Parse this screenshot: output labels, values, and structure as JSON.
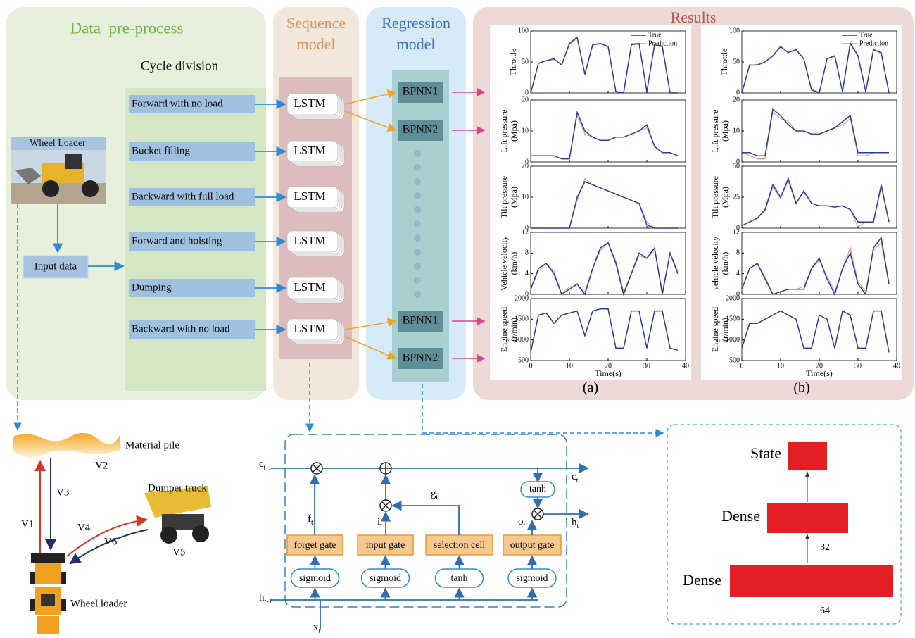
{
  "data_preprocess": {
    "title": "Data  pre-process",
    "cycle_title": "Cycle division",
    "loader_label": "Wheel Loader",
    "input": "Input data",
    "phases": [
      "Forward with no load",
      "Bucket filling",
      "Backward with full load",
      "Forward and hoisting",
      "Dumping",
      "Backward with no load"
    ]
  },
  "sequence_model": {
    "title": [
      "Sequence",
      "model"
    ],
    "cells": [
      "LSTM",
      "LSTM",
      "LSTM",
      "LSTM",
      "LSTM",
      "LSTM"
    ]
  },
  "regression_model": {
    "title": [
      "Regression",
      "model"
    ],
    "top": [
      "BPNN1",
      "BPNN2"
    ],
    "bottom": [
      "BPNN1",
      "BPNN2"
    ]
  },
  "results": {
    "title": "Results",
    "xlabel": "Time(s)",
    "xlim": [
      0,
      40
    ],
    "xticks": [
      0,
      10,
      20,
      30,
      40
    ],
    "panels": [
      {
        "label": "(a)",
        "x": [
          0,
          2,
          4,
          6,
          8,
          10,
          12,
          14,
          16,
          18,
          20,
          22,
          24,
          26,
          28,
          30,
          32,
          34,
          36,
          38
        ],
        "charts": [
          {
            "type": "line",
            "ylabel": [
              "Throttle"
            ],
            "ylim": [
              0,
              100
            ],
            "yticks": [
              0,
              50,
              100
            ],
            "series": [
              {
                "name": "True",
                "color": "#2a3c99",
                "values": [
                  0,
                  48,
                  52,
                  55,
                  45,
                  80,
                  90,
                  30,
                  78,
                  80,
                  75,
                  2,
                  0,
                  78,
                  80,
                  2,
                  78,
                  75,
                  0,
                  0
                ]
              },
              {
                "name": "Prediction",
                "color": "#f08a8a",
                "values": [
                  0,
                  47,
                  52,
                  54,
                  46,
                  78,
                  88,
                  32,
                  77,
                  79,
                  74,
                  3,
                  1,
                  77,
                  79,
                  3,
                  77,
                  74,
                  1,
                  0
                ]
              }
            ]
          },
          {
            "type": "line",
            "ylabel": [
              "Lift pressure",
              "(Mpa)"
            ],
            "ylim": [
              0,
              20
            ],
            "yticks": [
              0,
              10,
              20
            ],
            "series": [
              {
                "color": "#2a3c99",
                "values": [
                  2,
                  2,
                  2,
                  2,
                  1,
                  1,
                  16,
                  10,
                  8,
                  7,
                  7,
                  8,
                  8,
                  9,
                  10,
                  12,
                  5,
                  3,
                  3,
                  2
                ]
              },
              {
                "color": "#f08a8a",
                "values": [
                  2,
                  2,
                  2,
                  2,
                  1,
                  1,
                  15,
                  9,
                  8,
                  7,
                  7,
                  8,
                  8,
                  9,
                  10,
                  11,
                  5,
                  3,
                  3,
                  2
                ]
              }
            ]
          },
          {
            "type": "line",
            "ylabel": [
              "Tilt pressure",
              "(Mpa)"
            ],
            "ylim": [
              0,
              20
            ],
            "yticks": [
              0,
              10,
              20
            ],
            "series": [
              {
                "color": "#2a3c99",
                "values": [
                  0,
                  0,
                  0,
                  0,
                  0,
                  0,
                  10,
                  15,
                  14,
                  13,
                  12,
                  11,
                  10,
                  9,
                  8,
                  1,
                  0,
                  0,
                  0,
                  0
                ]
              },
              {
                "color": "#f08a8a",
                "values": [
                  0,
                  0,
                  0,
                  0,
                  0,
                  0,
                  9,
                  16,
                  14,
                  13,
                  12,
                  11,
                  10,
                  9,
                  8,
                  2,
                  0,
                  0,
                  0,
                  0
                ]
              }
            ]
          },
          {
            "type": "line",
            "ylabel": [
              "Vehicle velocity",
              "(km/h)"
            ],
            "ylim": [
              0,
              12
            ],
            "yticks": [
              0,
              4,
              8,
              12
            ],
            "series": [
              {
                "color": "#2a3c99",
                "values": [
                  1,
                  5,
                  6,
                  4,
                  0,
                  1,
                  2,
                  0,
                  5,
                  9,
                  10,
                  6,
                  0,
                  4,
                  8,
                  7,
                  9,
                  0,
                  8,
                  4
                ]
              },
              {
                "color": "#f08a8a",
                "values": [
                  1,
                  4.5,
                  6,
                  4.5,
                  0,
                  1.5,
                  1.5,
                  0.5,
                  5,
                  8.5,
                  10,
                  6.5,
                  0.5,
                  4,
                  7.5,
                  7,
                  8.5,
                  0.5,
                  8,
                  4.5
                ]
              }
            ]
          },
          {
            "type": "line",
            "ylabel": [
              "Engine speed",
              "(r/min)"
            ],
            "ylim": [
              500,
              2000
            ],
            "yticks": [
              500,
              1000,
              1500,
              2000
            ],
            "series": [
              {
                "color": "#2a3c99",
                "values": [
                  700,
                  1600,
                  1650,
                  1400,
                  1600,
                  1650,
                  1700,
                  1100,
                  1700,
                  1750,
                  1750,
                  800,
                  800,
                  1700,
                  1700,
                  800,
                  1700,
                  1700,
                  800,
                  750
                ]
              },
              {
                "color": "#f08a8a",
                "values": [
                  700,
                  1600,
                  1650,
                  1400,
                  1600,
                  1650,
                  1700,
                  1100,
                  1700,
                  1750,
                  1750,
                  800,
                  800,
                  1700,
                  1700,
                  800,
                  1700,
                  1700,
                  800,
                  750
                ]
              }
            ]
          }
        ]
      },
      {
        "label": "(b)",
        "x": [
          0,
          2,
          4,
          6,
          8,
          10,
          12,
          14,
          16,
          18,
          20,
          22,
          24,
          26,
          28,
          30,
          32,
          34,
          36,
          38
        ],
        "charts": [
          {
            "type": "line",
            "ylabel": [
              "Throttle"
            ],
            "ylim": [
              0,
              100
            ],
            "yticks": [
              0,
              50,
              100
            ],
            "series": [
              {
                "name": "True",
                "color": "#2a3c99",
                "values": [
                  0,
                  45,
                  45,
                  50,
                  60,
                  75,
                  65,
                  70,
                  55,
                  5,
                  0,
                  55,
                  60,
                  2,
                  80,
                  60,
                  2,
                  70,
                  65,
                  0
                ]
              },
              {
                "name": "Prediction",
                "color": "#f08a8a",
                "values": [
                  0,
                  44,
                  46,
                  50,
                  59,
                  74,
                  66,
                  69,
                  56,
                  6,
                  1,
                  55,
                  59,
                  3,
                  78,
                  61,
                  3,
                  69,
                  64,
                  1
                ]
              }
            ]
          },
          {
            "type": "line",
            "ylabel": [
              "Lift pressure",
              "(Mpa)"
            ],
            "ylim": [
              0,
              20
            ],
            "yticks": [
              0,
              10,
              20
            ],
            "series": [
              {
                "color": "#2a3c99",
                "values": [
                  3,
                  3,
                  2,
                  2,
                  17,
                  15,
                  12,
                  10,
                  10,
                  9,
                  9,
                  10,
                  11,
                  13,
                  15,
                  3,
                  3,
                  3,
                  3,
                  3
                ]
              },
              {
                "color": "#f08a8a",
                "values": [
                  3,
                  2,
                  1,
                  1,
                  16,
                  14,
                  13,
                  10,
                  10,
                  9,
                  9,
                  10,
                  11,
                  12,
                  14,
                  2,
                  2,
                  3,
                  3,
                  3
                ]
              }
            ]
          },
          {
            "type": "line",
            "ylabel": [
              "Tilt pressure",
              "(Mpa)"
            ],
            "ylim": [
              0,
              50
            ],
            "yticks": [
              0,
              25,
              50
            ],
            "series": [
              {
                "color": "#2a3c99",
                "values": [
                  2,
                  5,
                  8,
                  15,
                  35,
                  25,
                  40,
                  20,
                  30,
                  20,
                  18,
                  18,
                  17,
                  18,
                  15,
                  5,
                  5,
                  5,
                  35,
                  5
                ]
              },
              {
                "color": "#f08a8a",
                "values": [
                  2,
                  5,
                  8,
                  14,
                  33,
                  24,
                  38,
                  20,
                  29,
                  20,
                  18,
                  18,
                  17,
                  18,
                  15,
                  1,
                  5,
                  5,
                  33,
                  5
                ]
              }
            ]
          },
          {
            "type": "line",
            "ylabel": [
              "vehicle velocity",
              "(km/h)"
            ],
            "ylim": [
              0,
              12
            ],
            "yticks": [
              0,
              4,
              8,
              12
            ],
            "series": [
              {
                "color": "#2a3c99",
                "values": [
                  1,
                  5,
                  6,
                  3,
                  0,
                  0.5,
                  1,
                  1,
                  1,
                  5,
                  7,
                  3,
                  0,
                  5,
                  8,
                  2,
                  0,
                  9,
                  11,
                  2
                ]
              },
              {
                "color": "#f08a8a",
                "values": [
                  1,
                  5,
                  6,
                  3.5,
                  0,
                  0.5,
                  1,
                  1,
                  1.5,
                  5,
                  6.5,
                  3.5,
                  0.5,
                  5,
                  9,
                  2.5,
                  0.5,
                  8.5,
                  10,
                  2
                ]
              }
            ]
          },
          {
            "type": "line",
            "ylabel": [
              "Engine speed",
              "(r/min)"
            ],
            "ylim": [
              500,
              2000
            ],
            "yticks": [
              500,
              1000,
              1500,
              2000
            ],
            "series": [
              {
                "color": "#2a3c99",
                "values": [
                  800,
                  1400,
                  1400,
                  1500,
                  1600,
                  1700,
                  1600,
                  1500,
                  800,
                  800,
                  1600,
                  1500,
                  800,
                  1700,
                  1600,
                  800,
                  800,
                  1700,
                  1700,
                  700
                ]
              },
              {
                "color": "#f08a8a",
                "values": [
                  800,
                  1400,
                  1400,
                  1500,
                  1600,
                  1700,
                  1600,
                  1500,
                  800,
                  800,
                  1600,
                  1500,
                  800,
                  1700,
                  1600,
                  800,
                  800,
                  1700,
                  1700,
                  700
                ]
              }
            ]
          }
        ]
      }
    ]
  },
  "work_cycle": {
    "material_pile": "Material pile",
    "dumper_truck": "Dumper truck",
    "wheel_loader": "Wheel loader",
    "v1": "V1",
    "v2": "V2",
    "v3": "V3",
    "v4": "V4",
    "v5": "V5",
    "v6": "V6"
  },
  "lstm_cell": {
    "c_prev": {
      "base": "c",
      "sub": "t-1"
    },
    "h_prev": {
      "base": "h",
      "sub": "t-1"
    },
    "x": {
      "base": "x",
      "sub": "t"
    },
    "c": {
      "base": "c",
      "sub": "t"
    },
    "h": {
      "base": "h",
      "sub": "t"
    },
    "f": {
      "base": "f",
      "sub": "t"
    },
    "i": {
      "base": "i",
      "sub": "t"
    },
    "g": {
      "base": "g",
      "sub": "t"
    },
    "o": {
      "base": "o",
      "sub": "t"
    },
    "gates": [
      "forget gate",
      "input gate",
      "selection cell",
      "output gate"
    ],
    "activations": [
      "sigmoid",
      "sigmoid",
      "tanh",
      "sigmoid"
    ],
    "cell_activation": "tanh"
  },
  "dense_net": {
    "output": "State",
    "hidden": "Dense",
    "hidden_units": 32,
    "input": "Dense",
    "input_units": 64
  }
}
